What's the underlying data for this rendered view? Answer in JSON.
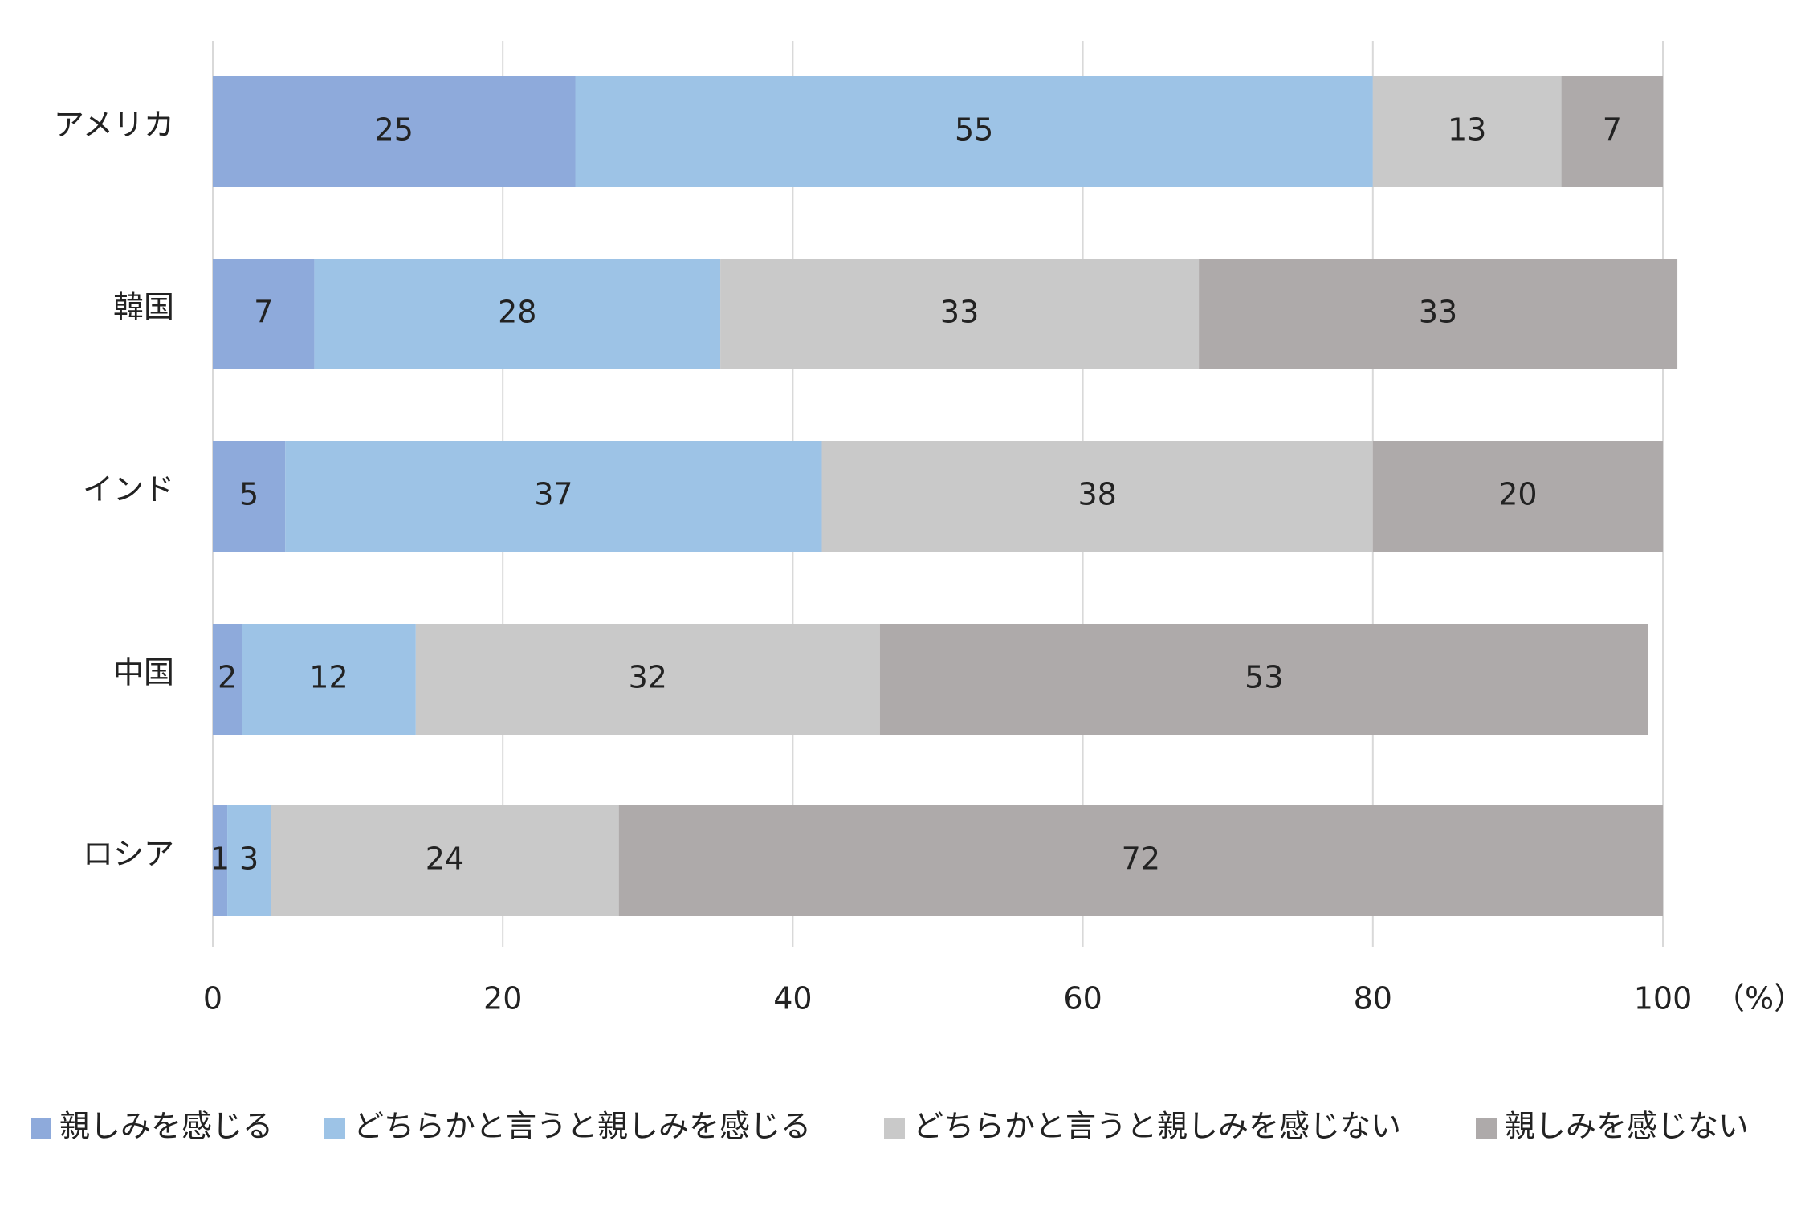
{
  "chart_data": {
    "type": "stacked-barh",
    "categories": [
      "アメリカ",
      "韓国",
      "インド",
      "中国",
      "ロシア"
    ],
    "series": [
      {
        "name": "親しみを感じる",
        "color": "#8eaadb",
        "values": [
          25,
          7,
          5,
          2,
          1
        ]
      },
      {
        "name": "どちらかと言うと親しみを感じる",
        "color": "#9dc3e6",
        "values": [
          55,
          28,
          37,
          12,
          3
        ]
      },
      {
        "name": "どちらかと言うと親しみを感じない",
        "color": "#c9c9c9",
        "values": [
          13,
          33,
          38,
          32,
          24
        ]
      },
      {
        "name": "親しみを感じない",
        "color": "#aeaaaa",
        "values": [
          7,
          33,
          20,
          53,
          72
        ]
      }
    ],
    "xlim": [
      0,
      100
    ],
    "xticks": [
      0,
      20,
      40,
      60,
      80,
      100
    ],
    "x_unit": "（%）",
    "grid": true,
    "legend": "bottom"
  }
}
